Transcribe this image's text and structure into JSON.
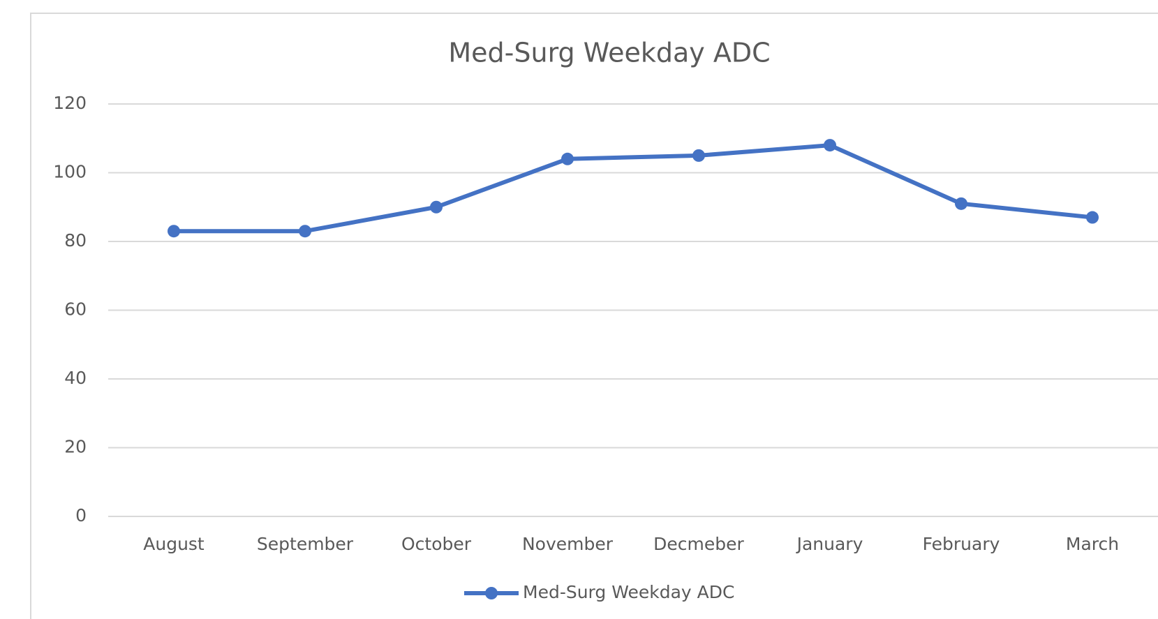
{
  "chart_data": {
    "type": "line",
    "title": "Med-Surg Weekday ADC",
    "categories": [
      "August",
      "September",
      "October",
      "November",
      "Decmeber",
      "January",
      "February",
      "March"
    ],
    "series": [
      {
        "name": "Med-Surg Weekday ADC",
        "color": "#4472c4",
        "values": [
          83,
          83,
          90,
          104,
          105,
          108,
          91,
          87
        ]
      }
    ],
    "ylim": [
      0,
      120
    ],
    "yticks": [
      0,
      20,
      40,
      60,
      80,
      100,
      120
    ],
    "grid": true,
    "legend": "bottom"
  }
}
